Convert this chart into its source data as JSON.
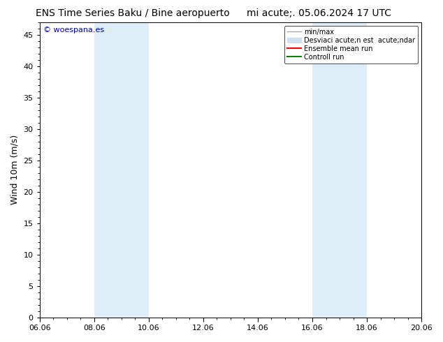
{
  "title_left": "ENS Time Series Baku / Bine aeropuerto",
  "title_right": "mi acute;. 05.06.2024 17 UTC",
  "ylabel": "Wind 10m (m/s)",
  "xlabel_ticks": [
    "06.06",
    "08.06",
    "10.06",
    "12.06",
    "14.06",
    "16.06",
    "18.06",
    "20.06"
  ],
  "xlim": [
    0,
    14
  ],
  "ylim": [
    0,
    47
  ],
  "yticks": [
    0,
    5,
    10,
    15,
    20,
    25,
    30,
    35,
    40,
    45
  ],
  "shaded_bands": [
    {
      "xmin": 2.0,
      "xmax": 3.0
    },
    {
      "xmin": 3.0,
      "xmax": 4.0
    },
    {
      "xmin": 10.0,
      "xmax": 11.0
    },
    {
      "xmin": 11.0,
      "xmax": 12.0
    }
  ],
  "band_color": "#ddeef8",
  "watermark_text": "© woespana.es",
  "watermark_color": "#0000cc",
  "legend_entries": [
    {
      "label": "min/max",
      "color": "#aaaaaa",
      "lw": 1
    },
    {
      "label": "Desviaci acute;n est  acute;ndar",
      "color": "#cce0f0",
      "lw": 8
    },
    {
      "label": "Ensemble mean run",
      "color": "red",
      "lw": 1.5
    },
    {
      "label": "Controll run",
      "color": "green",
      "lw": 1.5
    }
  ],
  "background_color": "#ffffff",
  "title_fontsize": 10,
  "tick_fontsize": 8,
  "ylabel_fontsize": 9,
  "minor_xticks_per_interval": 3
}
